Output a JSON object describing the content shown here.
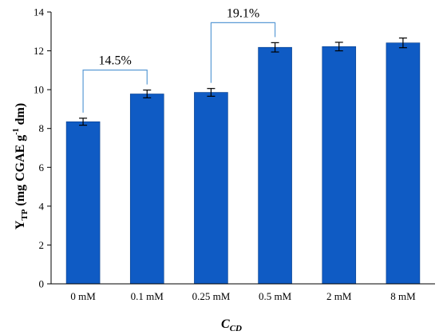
{
  "chart_data": {
    "type": "bar",
    "categories": [
      "0 mM",
      "0.1 mM",
      "0.25 mM",
      "0.5 mM",
      "2 mM",
      "8 mM"
    ],
    "values": [
      8.35,
      9.78,
      9.86,
      12.18,
      12.22,
      12.41
    ],
    "errors": [
      0.18,
      0.2,
      0.2,
      0.24,
      0.22,
      0.25
    ],
    "ylim": [
      0,
      14
    ],
    "yticks": [
      0,
      2,
      4,
      6,
      8,
      10,
      12,
      14
    ],
    "ylabel": {
      "main": "Y",
      "sub": "TP",
      "rest": " (mg CGAE g",
      "sup": "-1",
      "end": " dm)"
    },
    "xlabel": {
      "main": "C",
      "sub": "CD"
    },
    "bar_color": "#0f5bc4",
    "annotation_color": "#5b9bd5",
    "annotations": [
      {
        "label": "14.5%",
        "from": 0,
        "to": 1
      },
      {
        "label": "19.1%",
        "from": 2,
        "to": 3
      }
    ],
    "grid": false
  }
}
